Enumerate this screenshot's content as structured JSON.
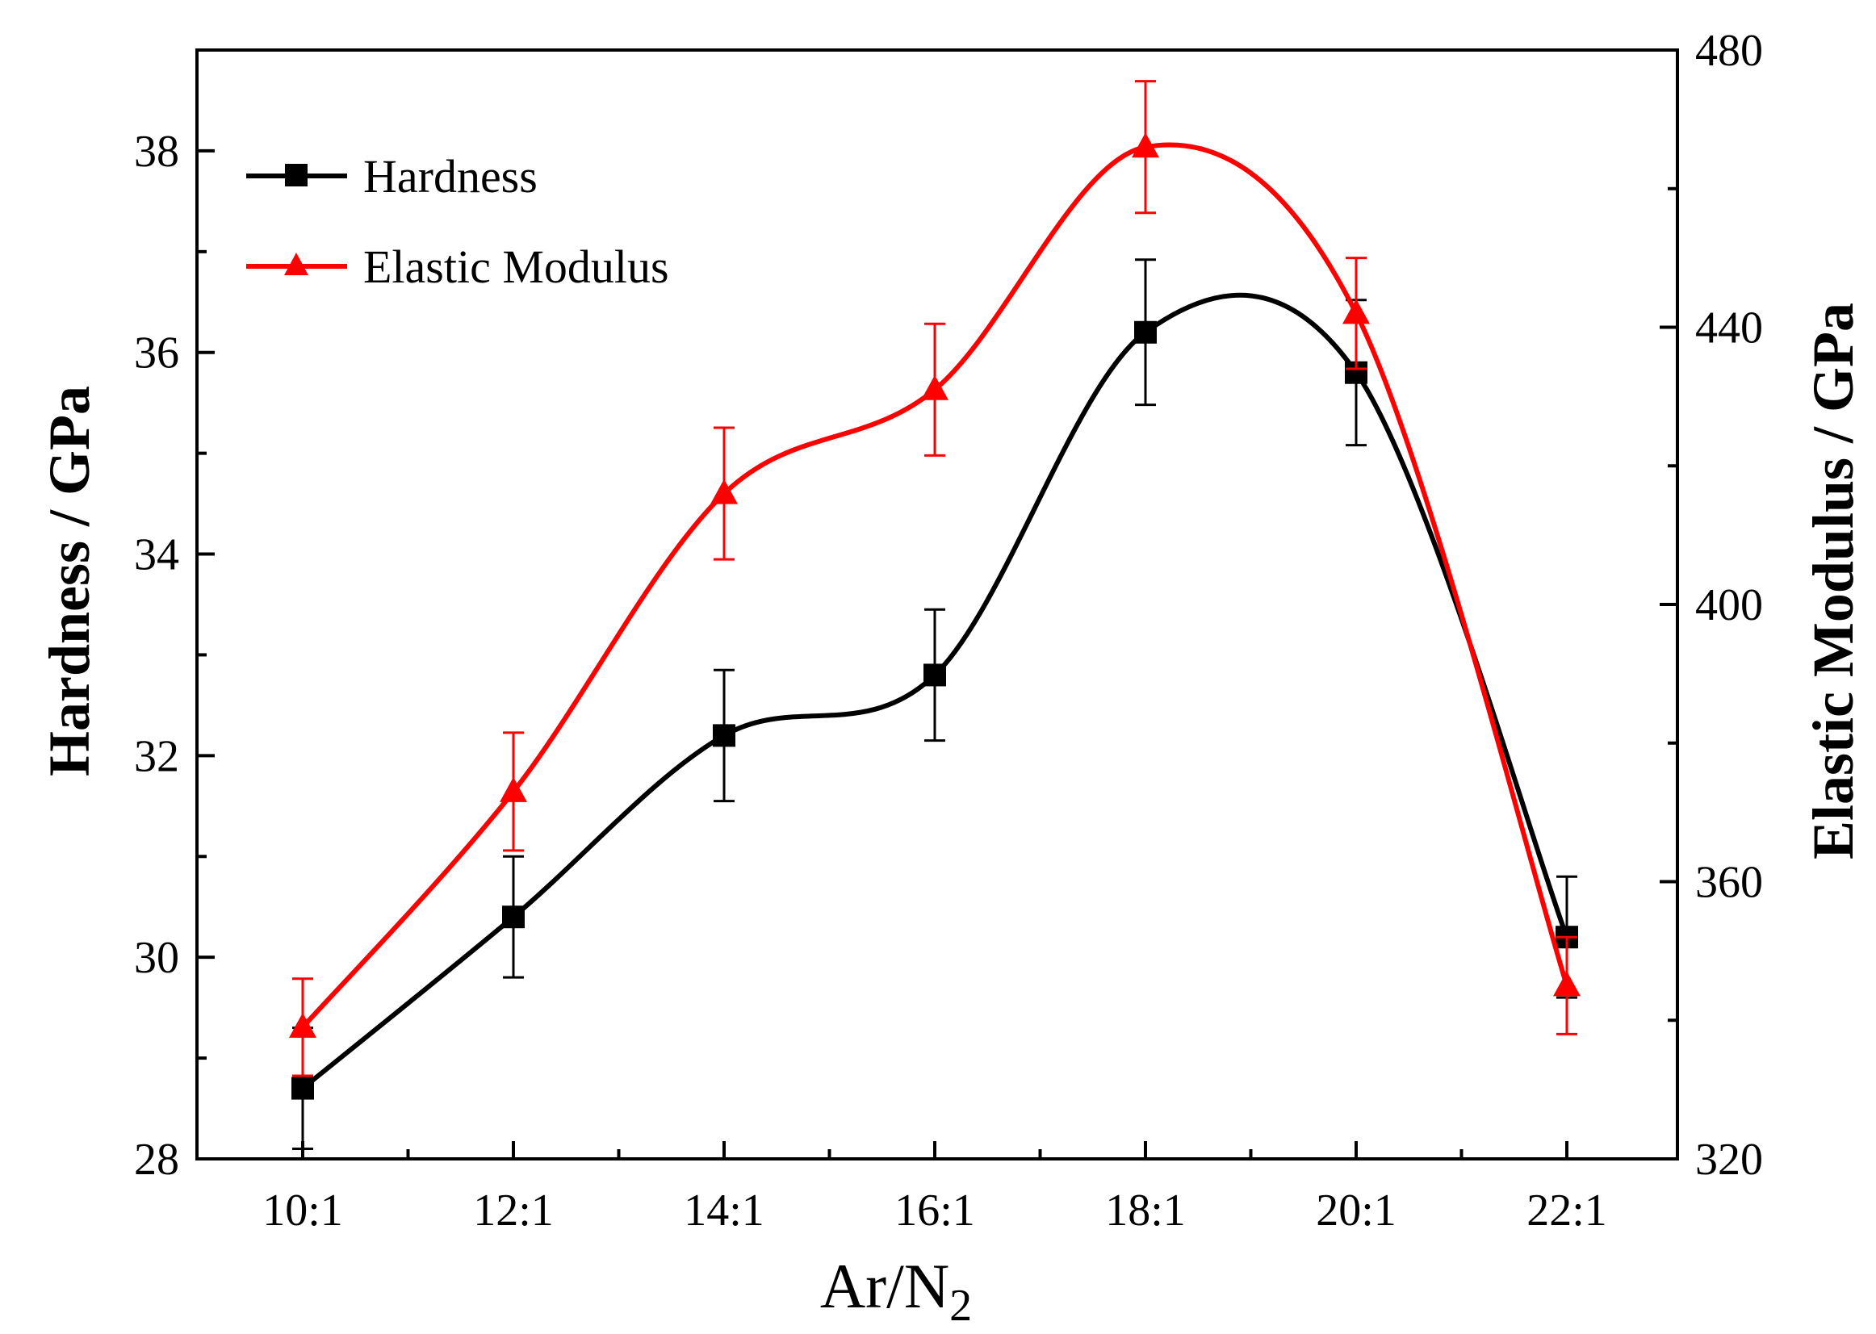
{
  "chart_data": {
    "type": "line",
    "categories": [
      "10:1",
      "12:1",
      "14:1",
      "16:1",
      "18:1",
      "20:1",
      "22:1"
    ],
    "xlabel": "Ar/N",
    "xlabel_subscript": "2",
    "ylabel_left": "Hardness / GPa",
    "ylabel_right": "Elastic Modulus / GPa",
    "ylim_left": [
      28,
      39
    ],
    "ylim_right": [
      320,
      480
    ],
    "yticks_left": [
      "28",
      "30",
      "32",
      "34",
      "36",
      "38"
    ],
    "yticks_right": [
      "320",
      "360",
      "400",
      "440",
      "480"
    ],
    "legend_position": "top-left",
    "series": [
      {
        "name": "Hardness",
        "axis": "left",
        "color": "#000000",
        "marker": "square",
        "values": [
          28.7,
          30.4,
          32.2,
          32.8,
          36.2,
          35.8,
          30.2
        ],
        "errors": [
          0.6,
          0.6,
          0.65,
          0.65,
          0.72,
          0.72,
          0.6
        ]
      },
      {
        "name": "Elastic Modulus",
        "axis": "right",
        "color": "#ff0000",
        "marker": "triangle",
        "values": [
          339,
          373,
          416,
          431,
          466,
          442,
          345
        ],
        "errors": [
          7,
          8.5,
          9.5,
          9.5,
          9.5,
          8,
          7
        ]
      }
    ]
  }
}
